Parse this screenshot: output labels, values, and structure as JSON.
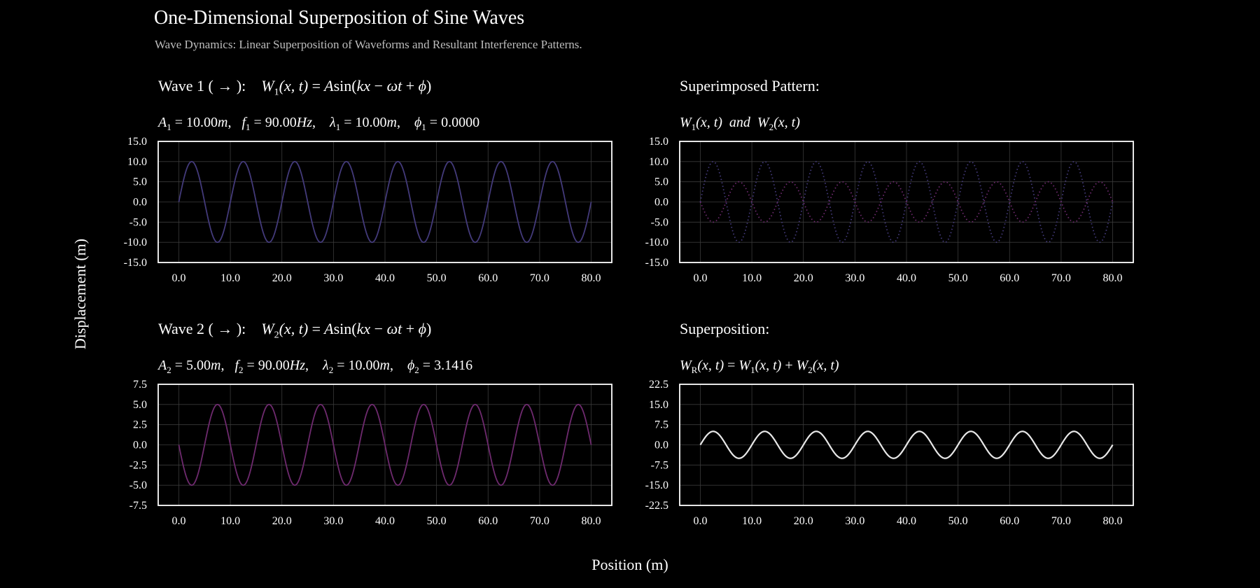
{
  "figure": {
    "title": "One-Dimensional Superposition of Sine Waves",
    "subtitle": "Wave Dynamics: Linear Superposition of Waveforms and Resultant Interference Patterns.",
    "xlabel": "Position (m)",
    "ylabel": "Displacement (m)"
  },
  "panels": {
    "wave1": {
      "label": "Wave 1 ( → ):",
      "params": {
        "A": "10.00",
        "f": "90.00",
        "lambda": "10.00",
        "phi": "0.0000"
      }
    },
    "wave2": {
      "label": "Wave 2 ( → ):",
      "params": {
        "A": "5.00",
        "f": "90.00",
        "lambda": "10.00",
        "phi": "3.1416"
      }
    },
    "superimposed": {
      "label": "Superimposed Pattern:"
    },
    "superposition": {
      "label": "Superposition:"
    }
  },
  "colors": {
    "background": "#000000",
    "wave1": "#433a7a",
    "wave2": "#6e2a6e",
    "resultant": "#e8e8e8",
    "grid": "#3a3a3a",
    "axes": "#ffffff"
  },
  "chart_data": [
    {
      "type": "line",
      "panel": "wave1",
      "x_range": [
        0,
        80
      ],
      "xlim": [
        -4,
        84
      ],
      "xticks": [
        0,
        10,
        20,
        30,
        40,
        50,
        60,
        70,
        80
      ],
      "ylim": [
        -15,
        15
      ],
      "yticks": [
        -15,
        -10,
        -5,
        0,
        5,
        10,
        15
      ],
      "grid": true,
      "series": [
        {
          "amplitude": 10,
          "wavelength": 10,
          "phase": 0,
          "color": "#433a7a",
          "style": "solid"
        }
      ]
    },
    {
      "type": "line",
      "panel": "superimposed",
      "x_range": [
        0,
        80
      ],
      "xlim": [
        -4,
        84
      ],
      "xticks": [
        0,
        10,
        20,
        30,
        40,
        50,
        60,
        70,
        80
      ],
      "ylim": [
        -15,
        15
      ],
      "yticks": [
        -15,
        -10,
        -5,
        0,
        5,
        10,
        15
      ],
      "grid": true,
      "series": [
        {
          "amplitude": 10,
          "wavelength": 10,
          "phase": 0,
          "color": "#433a7a",
          "style": "dotted"
        },
        {
          "amplitude": 5,
          "wavelength": 10,
          "phase": 3.1416,
          "color": "#6e2a6e",
          "style": "dotted"
        }
      ]
    },
    {
      "type": "line",
      "panel": "wave2",
      "x_range": [
        0,
        80
      ],
      "xlim": [
        -4,
        84
      ],
      "xticks": [
        0,
        10,
        20,
        30,
        40,
        50,
        60,
        70,
        80
      ],
      "ylim": [
        -7.5,
        7.5
      ],
      "yticks": [
        -7.5,
        -5,
        -2.5,
        0,
        2.5,
        5,
        7.5
      ],
      "grid": true,
      "series": [
        {
          "amplitude": 5,
          "wavelength": 10,
          "phase": 3.1416,
          "color": "#6e2a6e",
          "style": "solid"
        }
      ]
    },
    {
      "type": "line",
      "panel": "superposition",
      "x_range": [
        0,
        80
      ],
      "xlim": [
        -4,
        84
      ],
      "xticks": [
        0,
        10,
        20,
        30,
        40,
        50,
        60,
        70,
        80
      ],
      "ylim": [
        -22.5,
        22.5
      ],
      "yticks": [
        -22.5,
        -15,
        -7.5,
        0,
        7.5,
        15,
        22.5
      ],
      "grid": true,
      "series": [
        {
          "amplitude": 5,
          "wavelength": 10,
          "phase": 0,
          "color": "#e8e8e8",
          "style": "solid",
          "width": 2.2
        }
      ]
    }
  ]
}
